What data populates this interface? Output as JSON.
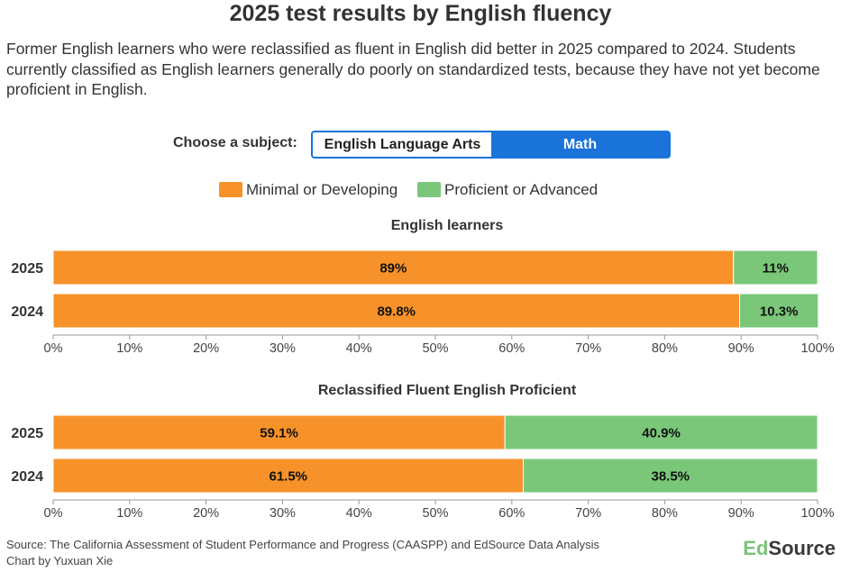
{
  "title": "2025 test results by English fluency",
  "subtitle": "Former English learners who were reclassified as fluent in English did better in 2025 compared to 2024. Students currently classified as English learners generally do poorly on standardized tests, because they have not yet become proficient in English.",
  "subject_selector": {
    "label": "Choose a subject:",
    "options": [
      "English Language Arts",
      "Math"
    ],
    "selected": "Math"
  },
  "legend": [
    {
      "label": "Minimal or Developing",
      "color": "#f7922a"
    },
    {
      "label": "Proficient or Advanced",
      "color": "#7ac77a"
    }
  ],
  "footer": {
    "source": "Source: The California Assessment of Student Performance and Progress (CAASPP) and EdSource Data Analysis",
    "credit": "Chart by Yuxuan Xie"
  },
  "logo": {
    "part1": "Ed",
    "part2": "Source"
  },
  "chart_data": [
    {
      "type": "bar",
      "orientation": "horizontal",
      "stacked": true,
      "title": "English learners",
      "categories": [
        "2025",
        "2024"
      ],
      "series": [
        {
          "name": "Minimal or Developing",
          "values": [
            89,
            89.8
          ],
          "labels": [
            "89%",
            "89.8%"
          ]
        },
        {
          "name": "Proficient or Advanced",
          "values": [
            11,
            10.3
          ],
          "labels": [
            "11%",
            "10.3%"
          ]
        }
      ],
      "xlim": [
        0,
        100
      ],
      "xticks": [
        "0%",
        "10%",
        "20%",
        "30%",
        "40%",
        "50%",
        "60%",
        "70%",
        "80%",
        "90%",
        "100%"
      ]
    },
    {
      "type": "bar",
      "orientation": "horizontal",
      "stacked": true,
      "title": "Reclassified Fluent English Proficient",
      "categories": [
        "2025",
        "2024"
      ],
      "series": [
        {
          "name": "Minimal or Developing",
          "values": [
            59.1,
            61.5
          ],
          "labels": [
            "59.1%",
            "61.5%"
          ]
        },
        {
          "name": "Proficient or Advanced",
          "values": [
            40.9,
            38.5
          ],
          "labels": [
            "40.9%",
            "38.5%"
          ]
        }
      ],
      "xlim": [
        0,
        100
      ],
      "xticks": [
        "0%",
        "10%",
        "20%",
        "30%",
        "40%",
        "50%",
        "60%",
        "70%",
        "80%",
        "90%",
        "100%"
      ]
    }
  ]
}
